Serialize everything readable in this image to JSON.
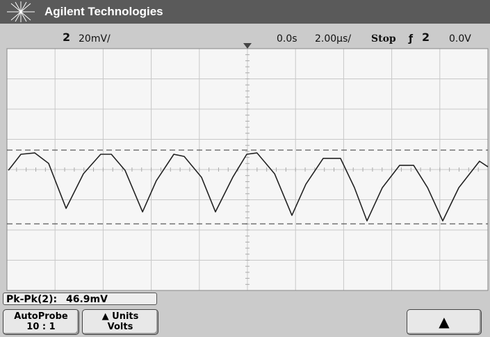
{
  "header": {
    "brand": "Agilent Technologies"
  },
  "status": {
    "channel": "2",
    "volts_per_div": "20mV/",
    "delay": "0.0s",
    "time_per_div": "2.00µs/",
    "run_state": "Stop",
    "trigger_slope": "ƒ",
    "trigger_channel": "2",
    "trigger_level": "0.0V"
  },
  "chart_data": {
    "type": "line",
    "x": [
      -9.94,
      -9.42,
      -8.84,
      -8.27,
      -7.54,
      -6.82,
      -6.1,
      -5.66,
      -5.09,
      -4.36,
      -3.79,
      -3.06,
      -2.63,
      -1.91,
      -1.33,
      -0.61,
      -0.03,
      0.4,
      1.13,
      1.85,
      2.43,
      3.15,
      3.87,
      4.45,
      4.97,
      5.61,
      6.33,
      6.91,
      7.49,
      8.12,
      8.79,
      9.65,
      10.0
    ],
    "values": [
      -0.5,
      10.1,
      11.0,
      4.1,
      -25.7,
      -2.8,
      10.1,
      10.1,
      -0.5,
      -28.0,
      -7.4,
      10.1,
      8.7,
      -5.1,
      -28.0,
      -5.1,
      10.1,
      11.0,
      -2.8,
      -30.3,
      -9.7,
      7.4,
      7.4,
      -12.0,
      -34.0,
      -12.0,
      2.8,
      2.8,
      -12.0,
      -34.0,
      -12.0,
      5.5,
      1.8
    ],
    "color": "#222222",
    "xlim": [
      -10,
      10
    ],
    "ylim": [
      -80,
      80
    ],
    "cursors": [
      12.9,
      -35.9
    ]
  },
  "measurement": {
    "label": "Pk-Pk(2):",
    "value": "46.9mV"
  },
  "softkeys": [
    {
      "line1": "AutoProbe",
      "line2": "10 : 1"
    },
    {
      "line1": "Units",
      "line2": "Volts"
    }
  ]
}
